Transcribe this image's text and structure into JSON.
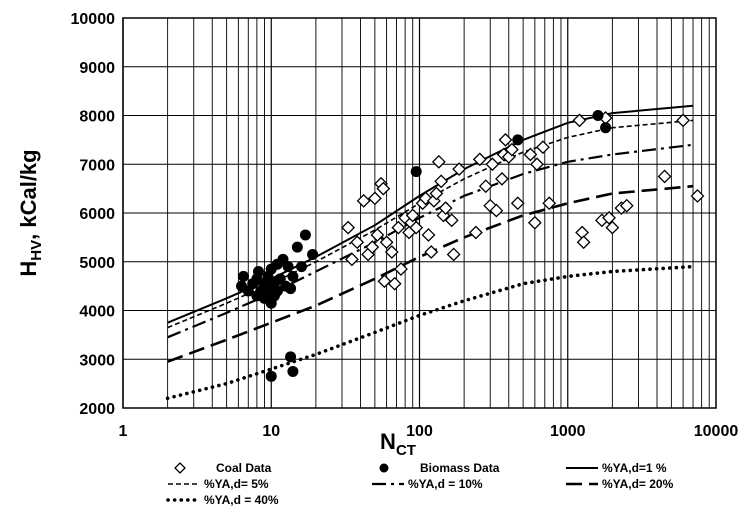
{
  "chart_data": {
    "type": "scatter",
    "title": "",
    "xlabel": {
      "main": "N",
      "sub": "CT"
    },
    "ylabel": {
      "main": "H",
      "sub": "HV",
      "rest": ", kCal/kg"
    },
    "x_scale": "log",
    "xlim": [
      1,
      10000
    ],
    "ylim": [
      2000,
      10000
    ],
    "x_ticks": [
      1,
      10,
      100,
      1000,
      10000
    ],
    "x_tick_labels": [
      "1",
      "10",
      "100",
      "1000",
      "10000"
    ],
    "y_ticks": [
      2000,
      3000,
      4000,
      5000,
      6000,
      7000,
      8000,
      9000,
      10000
    ],
    "y_tick_labels": [
      "2000",
      "3000",
      "4000",
      "5000",
      "6000",
      "7000",
      "8000",
      "9000",
      "10000"
    ],
    "grid": true,
    "legend_position": "bottom",
    "series": [
      {
        "name": "Coal Data",
        "kind": "scatter",
        "marker": "open-diamond",
        "points": [
          [
            33,
            5700
          ],
          [
            35,
            5050
          ],
          [
            38,
            5400
          ],
          [
            42,
            6250
          ],
          [
            45,
            5150
          ],
          [
            48,
            5300
          ],
          [
            50,
            6300
          ],
          [
            52,
            5550
          ],
          [
            55,
            6600
          ],
          [
            57,
            6500
          ],
          [
            58,
            4600
          ],
          [
            60,
            5400
          ],
          [
            65,
            5200
          ],
          [
            68,
            4550
          ],
          [
            72,
            5700
          ],
          [
            75,
            4850
          ],
          [
            80,
            5900
          ],
          [
            85,
            5600
          ],
          [
            88,
            5800
          ],
          [
            90,
            5950
          ],
          [
            95,
            5700
          ],
          [
            105,
            6200
          ],
          [
            110,
            6300
          ],
          [
            115,
            5550
          ],
          [
            120,
            5200
          ],
          [
            125,
            6250
          ],
          [
            130,
            6400
          ],
          [
            135,
            7050
          ],
          [
            140,
            6650
          ],
          [
            145,
            5950
          ],
          [
            150,
            6100
          ],
          [
            165,
            5850
          ],
          [
            170,
            5150
          ],
          [
            185,
            6900
          ],
          [
            240,
            5600
          ],
          [
            255,
            7100
          ],
          [
            280,
            6550
          ],
          [
            300,
            6150
          ],
          [
            310,
            7000
          ],
          [
            330,
            6050
          ],
          [
            360,
            6700
          ],
          [
            370,
            7200
          ],
          [
            380,
            7500
          ],
          [
            400,
            7150
          ],
          [
            420,
            7300
          ],
          [
            460,
            6200
          ],
          [
            560,
            7200
          ],
          [
            600,
            5800
          ],
          [
            620,
            7000
          ],
          [
            680,
            7350
          ],
          [
            750,
            6200
          ],
          [
            1200,
            7900
          ],
          [
            1250,
            5600
          ],
          [
            1280,
            5400
          ],
          [
            1700,
            5850
          ],
          [
            1800,
            7950
          ],
          [
            1900,
            5900
          ],
          [
            2000,
            5700
          ],
          [
            2300,
            6100
          ],
          [
            2500,
            6150
          ],
          [
            4500,
            6750
          ],
          [
            6000,
            7900
          ],
          [
            7500,
            6350
          ]
        ]
      },
      {
        "name": "Biomass Data",
        "kind": "scatter",
        "marker": "filled-circle",
        "points": [
          [
            6.3,
            4500
          ],
          [
            6.5,
            4700
          ],
          [
            7,
            4400
          ],
          [
            7.5,
            4550
          ],
          [
            8,
            4650
          ],
          [
            8,
            4300
          ],
          [
            8.2,
            4800
          ],
          [
            8.5,
            4400
          ],
          [
            9,
            4550
          ],
          [
            9,
            4250
          ],
          [
            9.5,
            4700
          ],
          [
            9.5,
            4400
          ],
          [
            10,
            4150
          ],
          [
            10,
            4850
          ],
          [
            10.5,
            4550
          ],
          [
            10.5,
            4300
          ],
          [
            11,
            4400
          ],
          [
            11,
            4950
          ],
          [
            11.5,
            4650
          ],
          [
            12,
            5050
          ],
          [
            12.5,
            4500
          ],
          [
            13,
            4900
          ],
          [
            13.5,
            4450
          ],
          [
            14,
            4700
          ],
          [
            15,
            5300
          ],
          [
            16,
            4900
          ],
          [
            17,
            5550
          ],
          [
            19,
            5150
          ],
          [
            10,
            2650
          ],
          [
            13.5,
            3050
          ],
          [
            14,
            2750
          ],
          [
            95,
            6850
          ],
          [
            460,
            7500
          ],
          [
            1600,
            8000
          ],
          [
            1800,
            7750
          ]
        ]
      },
      {
        "name": "%YA,d=1 %",
        "kind": "line",
        "style": "solid",
        "x": [
          2,
          5,
          10,
          20,
          50,
          100,
          200,
          500,
          1000,
          2000,
          7000
        ],
        "y": [
          3750,
          4250,
          4650,
          5100,
          5750,
          6350,
          6900,
          7500,
          7850,
          8050,
          8200
        ]
      },
      {
        "name": "%YA,d= 5%",
        "kind": "line",
        "style": "short-dash",
        "x": [
          2,
          5,
          10,
          20,
          50,
          100,
          200,
          500,
          1000,
          2000,
          7000
        ],
        "y": [
          3650,
          4150,
          4550,
          5000,
          5650,
          6200,
          6700,
          7250,
          7550,
          7750,
          7900
        ]
      },
      {
        "name": "%YA,d = 10%",
        "kind": "line",
        "style": "dash-dot",
        "x": [
          2,
          5,
          10,
          20,
          50,
          100,
          200,
          500,
          1000,
          2000,
          7000
        ],
        "y": [
          3450,
          3950,
          4350,
          4800,
          5400,
          5900,
          6350,
          6800,
          7050,
          7200,
          7400
        ]
      },
      {
        "name": "%YA,d= 20%",
        "kind": "line",
        "style": "long-dash",
        "x": [
          2,
          5,
          10,
          20,
          50,
          100,
          200,
          500,
          1000,
          2000,
          7000
        ],
        "y": [
          2950,
          3400,
          3750,
          4100,
          4650,
          5100,
          5500,
          5950,
          6200,
          6400,
          6550
        ]
      },
      {
        "name": "%YA,d = 40%",
        "kind": "line",
        "style": "dotted",
        "x": [
          2,
          5,
          10,
          20,
          50,
          100,
          200,
          500,
          1000,
          2000,
          7000
        ],
        "y": [
          2200,
          2500,
          2800,
          3100,
          3550,
          3900,
          4200,
          4550,
          4700,
          4800,
          4900
        ]
      }
    ]
  }
}
